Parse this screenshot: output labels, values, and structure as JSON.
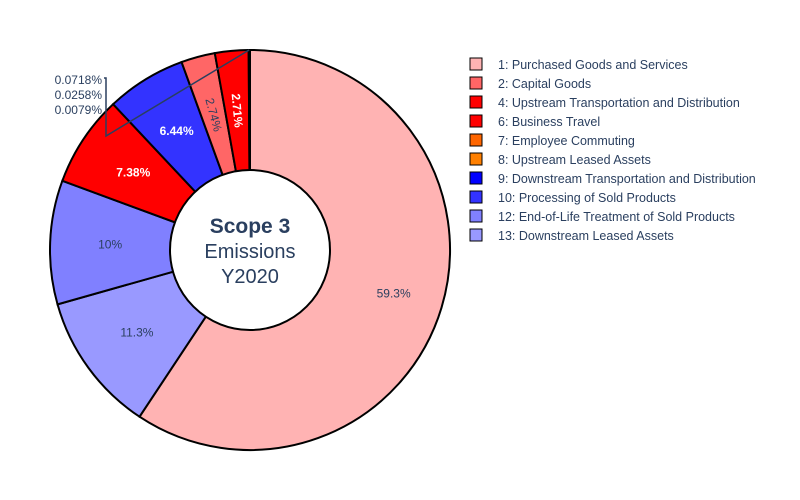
{
  "chart_data": {
    "type": "pie",
    "hole": true,
    "center_text": [
      "Scope 3",
      "Emissions",
      "Y2020"
    ],
    "sort": "descending",
    "series": [
      {
        "name": "1: Purchased Goods and Services",
        "value": 59.3,
        "label": "59.3%",
        "color": "#ffb3b3",
        "text_color": "#2a3f5f"
      },
      {
        "name": "2: Capital Goods",
        "value": 2.74,
        "label": "2.74%",
        "color": "#ff6666",
        "text_color": "#2a3f5f"
      },
      {
        "name": "4: Upstream Transportation and Distribution",
        "value": 2.71,
        "label": "2.71%",
        "color": "#ff0000",
        "text_color": "#ffffff"
      },
      {
        "name": "6: Business Travel",
        "value": 7.38,
        "label": "7.38%",
        "color": "#ff0000",
        "text_color": "#ffffff"
      },
      {
        "name": "7: Employee Commuting",
        "value": 0.0079,
        "label": "0.0079%",
        "color": "#ff6600",
        "text_color": "#2a3f5f"
      },
      {
        "name": "8: Upstream Leased Assets",
        "value": 0.0718,
        "label": "0.0718%",
        "color": "#ff8000",
        "text_color": "#2a3f5f"
      },
      {
        "name": "9: Downstream Transportation and Distribution",
        "value": 0.0258,
        "label": "0.0258%",
        "color": "#0000ff",
        "text_color": "#2a3f5f"
      },
      {
        "name": "10: Processing of Sold Products",
        "value": 6.44,
        "label": "6.44%",
        "color": "#3333ff",
        "text_color": "#ffffff"
      },
      {
        "name": "12: End-of-Life Treatment of Sold Products",
        "value": 10,
        "label": "10%",
        "color": "#8080ff",
        "text_color": "#2a3f5f"
      },
      {
        "name": "13: Downstream Leased Assets",
        "value": 11.3,
        "label": "11.3%",
        "color": "#9999ff",
        "text_color": "#2a3f5f"
      }
    ]
  }
}
